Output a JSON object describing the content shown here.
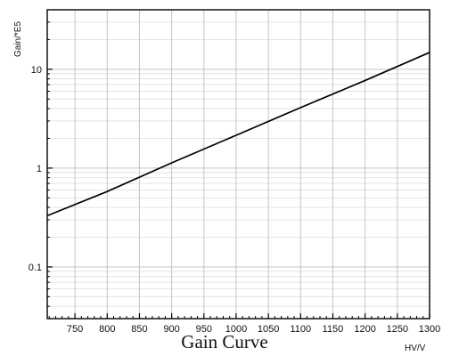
{
  "chart_data": {
    "type": "line",
    "title": "Gain Curve",
    "xlabel": "HV/V",
    "ylabel": "Gain/*E5",
    "xlim": [
      707,
      1300
    ],
    "ylim": [
      0.03,
      40
    ],
    "yscale": "log",
    "grid": true,
    "x_ticks": [
      750,
      800,
      850,
      900,
      950,
      1000,
      1050,
      1100,
      1150,
      1200,
      1250,
      1300
    ],
    "y_ticks": [
      0.1,
      1,
      10
    ],
    "series": [
      {
        "x": [
          707,
          800,
          900,
          1000,
          1100,
          1200,
          1300
        ],
        "y": [
          0.33,
          0.58,
          1.13,
          2.15,
          4.1,
          7.7,
          14.8
        ]
      }
    ]
  }
}
